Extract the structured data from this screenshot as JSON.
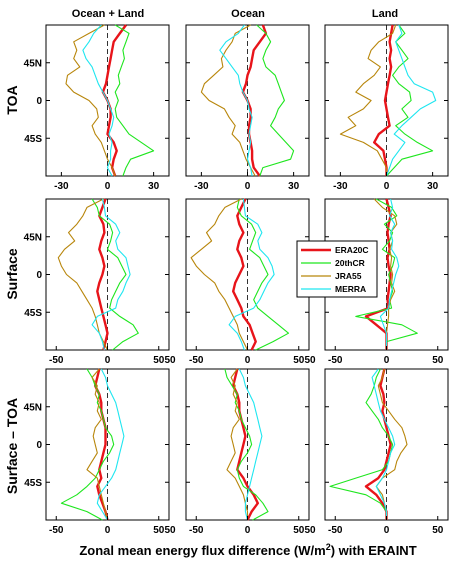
{
  "figure": {
    "xlabel_main": "Zonal mean energy flux difference (W/m",
    "xlabel_sup": "2",
    "xlabel_tail": ") with ERAINT"
  },
  "columns": [
    "Ocean + Land",
    "Ocean",
    "Land"
  ],
  "rows": [
    "TOA",
    "Surface",
    "Surface – TOA"
  ],
  "legend": [
    {
      "name": "ERA20C",
      "color": "#e8141a",
      "width": 2.4
    },
    {
      "name": "20thCR",
      "color": "#1ee61e",
      "width": 1.1
    },
    {
      "name": "JRA55",
      "color": "#b8860b",
      "width": 1.1
    },
    {
      "name": "MERRA",
      "color": "#1ee6f0",
      "width": 1.1
    }
  ],
  "chart_data": {
    "type": "line",
    "orientation": "vertical profile (x = flux difference, y = latitude)",
    "ylim": [
      -90,
      90
    ],
    "yticks": [
      {
        "value": 45,
        "label": "45N"
      },
      {
        "value": 0,
        "label": "0"
      },
      {
        "value": -45,
        "label": "45S"
      }
    ],
    "grid": false,
    "legend_position": "between Surface/Ocean and Surface/Land panels",
    "panels": [
      {
        "id": "toa-oceanland",
        "row": "TOA",
        "column": "Ocean + Land",
        "xlim": [
          -40,
          40
        ],
        "xticks": [
          -30,
          0,
          30
        ],
        "lat": [
          90,
          80,
          70,
          60,
          50,
          40,
          30,
          20,
          10,
          0,
          -10,
          -20,
          -30,
          -40,
          -50,
          -60,
          -70,
          -80,
          -90
        ],
        "series": {
          "ERA20C": [
            12,
            8,
            4,
            3,
            2,
            1,
            0,
            -1,
            -3,
            0,
            2,
            2,
            1,
            0,
            4,
            6,
            4,
            3,
            5
          ],
          "20thCR": [
            5,
            14,
            12,
            10,
            11,
            9,
            7,
            8,
            5,
            7,
            5,
            6,
            10,
            14,
            22,
            30,
            15,
            12,
            10
          ],
          "JRA55": [
            -2,
            -12,
            -22,
            -20,
            -22,
            -18,
            -26,
            -27,
            -22,
            -12,
            -7,
            -6,
            -10,
            -8,
            -4,
            -2,
            0,
            3,
            5
          ],
          "MERRA": [
            -4,
            -9,
            -12,
            -16,
            -14,
            -10,
            -8,
            -6,
            -3,
            0,
            2,
            4,
            3,
            1,
            3,
            2,
            2,
            0,
            3
          ]
        }
      },
      {
        "id": "toa-ocean",
        "row": "TOA",
        "column": "Ocean",
        "xlim": [
          -40,
          40
        ],
        "xticks": [
          -30,
          0,
          30
        ],
        "lat": [
          90,
          80,
          70,
          60,
          50,
          40,
          30,
          20,
          10,
          0,
          -10,
          -20,
          -30,
          -40,
          -50,
          -60,
          -70,
          -80,
          -90
        ],
        "series": {
          "ERA20C": [
            10,
            12,
            8,
            4,
            3,
            2,
            0,
            -1,
            -3,
            0,
            2,
            2,
            1,
            1,
            2,
            3,
            3,
            4,
            8
          ],
          "20thCR": [
            6,
            12,
            15,
            12,
            10,
            12,
            18,
            20,
            22,
            24,
            20,
            18,
            15,
            20,
            25,
            30,
            28,
            10,
            8
          ],
          "JRA55": [
            2,
            -8,
            -10,
            -14,
            -17,
            -16,
            -22,
            -28,
            -30,
            -25,
            -15,
            -12,
            -8,
            -10,
            -5,
            -3,
            -1,
            2,
            5
          ],
          "MERRA": [
            -2,
            -6,
            -14,
            -18,
            -14,
            -10,
            -6,
            -5,
            -3,
            0,
            1,
            3,
            2,
            1,
            2,
            1,
            0,
            2,
            3
          ]
        }
      },
      {
        "id": "toa-land",
        "row": "TOA",
        "column": "Land",
        "xlim": [
          -40,
          40
        ],
        "xticks": [
          -30,
          0,
          30
        ],
        "lat": [
          90,
          80,
          70,
          60,
          50,
          40,
          30,
          20,
          10,
          0,
          -10,
          -20,
          -30,
          -40,
          -50,
          -60,
          -70,
          -80,
          -90
        ],
        "series": {
          "ERA20C": [
            4,
            3,
            2,
            3,
            2,
            3,
            2,
            1,
            0,
            -1,
            0,
            1,
            2,
            -5,
            -8,
            -2,
            -1,
            0,
            0
          ],
          "20thCR": [
            8,
            12,
            6,
            10,
            14,
            8,
            4,
            8,
            15,
            16,
            10,
            14,
            6,
            12,
            20,
            30,
            10,
            5,
            0
          ],
          "JRA55": [
            6,
            4,
            -5,
            -10,
            -12,
            -4,
            -8,
            -15,
            -20,
            -10,
            -15,
            -25,
            -20,
            -30,
            -15,
            -6,
            -3,
            0,
            0
          ],
          "MERRA": [
            8,
            10,
            6,
            8,
            10,
            12,
            14,
            18,
            30,
            32,
            22,
            16,
            10,
            5,
            12,
            8,
            4,
            2,
            0
          ]
        }
      },
      {
        "id": "sfc-oceanland",
        "row": "Surface",
        "column": "Ocean + Land",
        "xlim": [
          -60,
          60
        ],
        "xticks": [
          -50,
          0,
          50
        ],
        "lat": [
          90,
          80,
          70,
          60,
          50,
          40,
          30,
          20,
          10,
          0,
          -10,
          -20,
          -30,
          -40,
          -50,
          -60,
          -70,
          -80,
          -90
        ],
        "series": {
          "ERA20C": [
            -2,
            -5,
            -8,
            -4,
            -3,
            -6,
            -8,
            -5,
            -3,
            -5,
            -8,
            -10,
            -8,
            -6,
            -4,
            -2,
            0,
            -2,
            -4
          ],
          "20thCR": [
            -15,
            -10,
            -8,
            2,
            5,
            3,
            0,
            10,
            14,
            18,
            12,
            8,
            4,
            2,
            12,
            25,
            30,
            15,
            5
          ],
          "JRA55": [
            -4,
            -20,
            -24,
            -30,
            -38,
            -32,
            -42,
            -48,
            -45,
            -40,
            -30,
            -25,
            -20,
            -15,
            -12,
            -10,
            -8,
            -4,
            0
          ],
          "MERRA": [
            -5,
            -3,
            -2,
            8,
            12,
            8,
            10,
            18,
            20,
            22,
            18,
            15,
            10,
            8,
            -10,
            -15,
            -8,
            -5,
            -3
          ]
        }
      },
      {
        "id": "sfc-ocean",
        "row": "Surface",
        "column": "Ocean",
        "xlim": [
          -60,
          60
        ],
        "xticks": [
          -50,
          0,
          50
        ],
        "lat": [
          90,
          80,
          70,
          60,
          50,
          40,
          30,
          20,
          10,
          0,
          -10,
          -20,
          -30,
          -40,
          -50,
          -60,
          -70,
          -80,
          -90
        ],
        "series": {
          "ERA20C": [
            -2,
            -6,
            -10,
            -8,
            -4,
            -8,
            -10,
            -6,
            -4,
            -8,
            -12,
            -14,
            -10,
            -6,
            -4,
            2,
            5,
            8,
            4
          ],
          "20thCR": [
            -8,
            -10,
            -6,
            4,
            8,
            5,
            2,
            12,
            16,
            20,
            14,
            10,
            6,
            10,
            20,
            30,
            40,
            25,
            8
          ],
          "JRA55": [
            -6,
            -22,
            -28,
            -32,
            -40,
            -35,
            -45,
            -55,
            -50,
            -42,
            -32,
            -28,
            -22,
            -18,
            -14,
            -10,
            -8,
            -4,
            0
          ],
          "MERRA": [
            -4,
            -3,
            -2,
            10,
            14,
            10,
            12,
            20,
            24,
            26,
            20,
            16,
            12,
            6,
            -12,
            -18,
            -10,
            -6,
            -3
          ]
        }
      },
      {
        "id": "sfc-land",
        "row": "Surface",
        "column": "Land",
        "xlim": [
          -60,
          60
        ],
        "xticks": [
          -50,
          0,
          50
        ],
        "lat": [
          90,
          80,
          70,
          60,
          50,
          40,
          30,
          20,
          10,
          0,
          -10,
          -20,
          -30,
          -40,
          -50,
          -60,
          -70,
          -80,
          -90
        ],
        "series": {
          "ERA20C": [
            0,
            2,
            4,
            2,
            1,
            2,
            3,
            1,
            2,
            4,
            3,
            2,
            1,
            2,
            -20,
            -10,
            0,
            0,
            0
          ],
          "20thCR": [
            -10,
            5,
            10,
            -2,
            6,
            3,
            -4,
            8,
            6,
            2,
            4,
            6,
            3,
            5,
            -30,
            15,
            30,
            0,
            0
          ],
          "JRA55": [
            -12,
            -4,
            8,
            10,
            4,
            6,
            3,
            5,
            4,
            6,
            5,
            8,
            4,
            2,
            2,
            1,
            0,
            0,
            0
          ],
          "MERRA": [
            4,
            6,
            3,
            8,
            4,
            6,
            5,
            10,
            12,
            9,
            7,
            5,
            3,
            2,
            -6,
            -3,
            0,
            0,
            0
          ]
        }
      },
      {
        "id": "diff-oceanland",
        "row": "Surface – TOA",
        "column": "Ocean + Land",
        "xlim": [
          -60,
          60
        ],
        "xticks": [
          -50,
          0,
          50
        ],
        "lat": [
          90,
          80,
          70,
          60,
          50,
          40,
          30,
          20,
          10,
          0,
          -10,
          -20,
          -30,
          -40,
          -50,
          -60,
          -70,
          -80,
          -90
        ],
        "series": {
          "ERA20C": [
            -8,
            -10,
            -12,
            -8,
            -6,
            -6,
            -4,
            -2,
            -2,
            -2,
            -4,
            -6,
            -8,
            -6,
            -10,
            -8,
            -5,
            -2,
            0
          ],
          "20thCR": [
            -20,
            -15,
            -12,
            -8,
            -10,
            -6,
            -4,
            -2,
            4,
            6,
            2,
            -4,
            -8,
            -12,
            -20,
            -30,
            -45,
            -20,
            -5
          ],
          "JRA55": [
            -8,
            -15,
            -10,
            -12,
            -8,
            -10,
            -6,
            -12,
            -14,
            -12,
            -10,
            -15,
            -20,
            -10,
            -8,
            -6,
            -4,
            -2,
            0
          ],
          "MERRA": [
            -6,
            -2,
            0,
            4,
            8,
            10,
            12,
            14,
            16,
            14,
            12,
            10,
            8,
            4,
            -2,
            -8,
            -10,
            -5,
            0
          ]
        }
      },
      {
        "id": "diff-ocean",
        "row": "Surface – TOA",
        "column": "Ocean",
        "xlim": [
          -60,
          60
        ],
        "xticks": [
          -50,
          0,
          50
        ],
        "lat": [
          90,
          80,
          70,
          60,
          50,
          40,
          30,
          20,
          10,
          0,
          -10,
          -20,
          -30,
          -40,
          -50,
          -60,
          -70,
          -80,
          -90
        ],
        "series": {
          "ERA20C": [
            -10,
            -12,
            -14,
            -10,
            -8,
            -8,
            -6,
            -4,
            -2,
            -4,
            -6,
            -8,
            -10,
            -4,
            0,
            6,
            10,
            4,
            0
          ],
          "20thCR": [
            -22,
            -20,
            -15,
            -10,
            -12,
            -8,
            -6,
            -2,
            2,
            4,
            0,
            -6,
            -10,
            -8,
            -4,
            8,
            15,
            20,
            5
          ],
          "JRA55": [
            -10,
            -16,
            -12,
            -14,
            -10,
            -12,
            -8,
            -14,
            -16,
            -14,
            -12,
            -16,
            -20,
            -12,
            -8,
            -4,
            -2,
            0,
            0
          ],
          "MERRA": [
            -8,
            -4,
            -2,
            2,
            6,
            8,
            10,
            12,
            14,
            12,
            10,
            8,
            6,
            4,
            2,
            0,
            -2,
            -2,
            0
          ]
        }
      },
      {
        "id": "diff-land",
        "row": "Surface – TOA",
        "column": "Land",
        "xlim": [
          -60,
          60
        ],
        "xticks": [
          -50,
          0,
          50
        ],
        "lat": [
          90,
          80,
          70,
          60,
          50,
          40,
          30,
          20,
          10,
          0,
          -10,
          -20,
          -30,
          -40,
          -50,
          -60,
          -70,
          -80,
          -90
        ],
        "series": {
          "ERA20C": [
            -2,
            -4,
            -6,
            -3,
            -2,
            -4,
            -2,
            0,
            2,
            4,
            2,
            0,
            -2,
            -8,
            -20,
            -10,
            -4,
            0,
            0
          ],
          "20thCR": [
            -6,
            -10,
            -12,
            -15,
            -20,
            -14,
            -8,
            -4,
            2,
            6,
            4,
            2,
            -4,
            -30,
            -55,
            -20,
            -6,
            0,
            0
          ],
          "JRA55": [
            -2,
            -4,
            -8,
            -6,
            -4,
            2,
            8,
            15,
            18,
            20,
            14,
            10,
            8,
            -4,
            -10,
            -4,
            -2,
            0,
            0
          ],
          "MERRA": [
            -8,
            -14,
            -12,
            -10,
            -8,
            -6,
            -2,
            2,
            6,
            8,
            4,
            2,
            0,
            -4,
            -10,
            -6,
            -2,
            0,
            0
          ]
        }
      }
    ]
  }
}
